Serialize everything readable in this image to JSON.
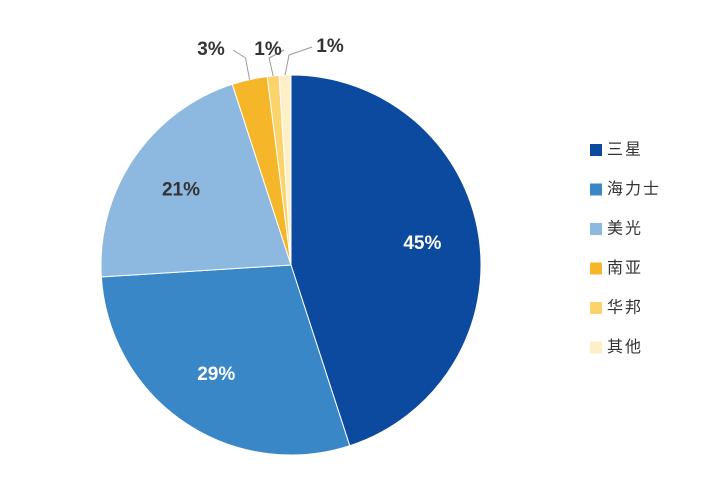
{
  "chart_data": {
    "type": "pie",
    "categories": [
      "三星",
      "海力士",
      "美光",
      "南亚",
      "华邦",
      "其他"
    ],
    "values": [
      45,
      29,
      21,
      3,
      1,
      1
    ],
    "value_labels": [
      "45%",
      "29%",
      "21%",
      "3%",
      "1%",
      "1%"
    ],
    "colors": [
      "#0b4a9e",
      "#3a87c8",
      "#8db8e0",
      "#f5b62a",
      "#fbd36b",
      "#fdf0c8"
    ],
    "legend": "right"
  }
}
